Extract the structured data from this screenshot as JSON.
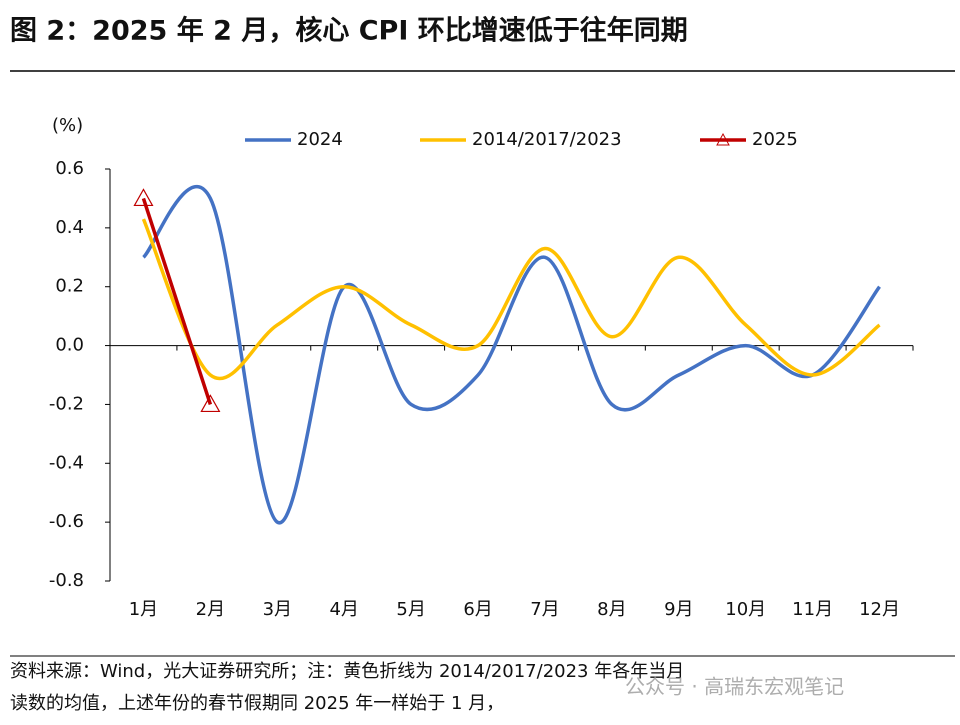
{
  "chart_data": {
    "type": "line",
    "title": "图 2：2025 年 2 月，核心 CPI 环比增速低于往年同期",
    "y_label": "(%)",
    "categories": [
      "1月",
      "2月",
      "3月",
      "4月",
      "5月",
      "6月",
      "7月",
      "8月",
      "9月",
      "10月",
      "11月",
      "12月"
    ],
    "series": [
      {
        "name": "2024",
        "color": "#4472c4",
        "values": [
          0.3,
          0.5,
          -0.6,
          0.2,
          -0.2,
          -0.1,
          0.3,
          -0.2,
          -0.1,
          0.0,
          -0.1,
          0.2
        ]
      },
      {
        "name": "2014/2017/2023",
        "color": "#ffc000",
        "values": [
          0.43,
          -0.1,
          0.07,
          0.2,
          0.07,
          0.0,
          0.33,
          0.03,
          0.3,
          0.07,
          -0.1,
          0.07
        ]
      },
      {
        "name": "2025",
        "color": "#c00000",
        "values": [
          0.5,
          -0.2,
          null,
          null,
          null,
          null,
          null,
          null,
          null,
          null,
          null,
          null
        ]
      }
    ],
    "ylim": [
      -0.8,
      0.6
    ],
    "yticks": [
      0.6,
      0.4,
      0.2,
      {
        "value": 0,
        "label": "0.0"
      },
      -0.2,
      -0.4,
      -0.6,
      -0.8
    ],
    "footnote": [
      "资料来源：Wind，光大证券研究所；注：黄色折线为 2014/2017/2023 年各年当月",
      "读数的均值，上述年份的春节假期同 2025 年一样始于 1 月，"
    ],
    "watermark": "公众号 · 高瑞东宏观笔记"
  }
}
